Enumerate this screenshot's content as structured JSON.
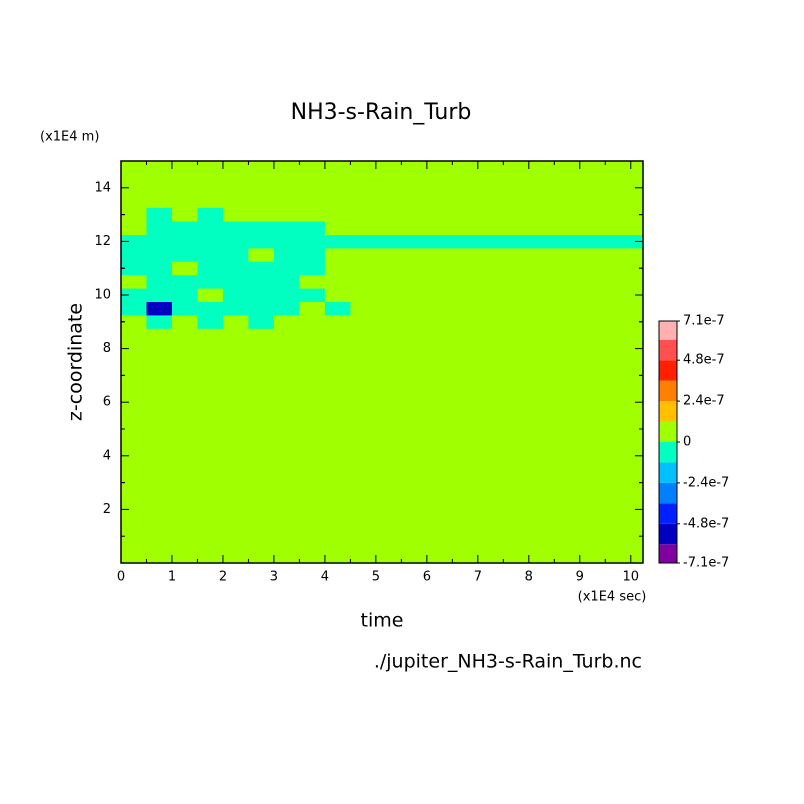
{
  "chart_data": {
    "type": "heatmap",
    "title": "NH3-s-Rain_Turb",
    "x_label": "time",
    "y_label": "z-coordinate",
    "x_unit": "(x1E4 sec)",
    "y_unit": "(x1E4 m)",
    "source": "./jupiter_NH3-s-Rain_Turb.nc",
    "xlim": [
      0,
      10.24
    ],
    "ylim": [
      0,
      15
    ],
    "xticks": [
      0,
      1,
      2,
      3,
      4,
      5,
      6,
      7,
      8,
      9,
      10
    ],
    "yticks": [
      2,
      4,
      6,
      8,
      10,
      12,
      14
    ],
    "x": [
      0.25,
      0.75,
      1.25,
      1.75,
      2.25,
      2.75,
      3.25,
      3.75,
      4.25,
      4.75,
      5.25,
      5.75,
      6.25,
      6.75,
      7.25,
      7.75,
      8.25,
      8.75,
      9.25,
      9.75,
      10.25
    ],
    "y": [
      9,
      9.5,
      10,
      10.5,
      11,
      11.5,
      12,
      12.5,
      13
    ],
    "values": [
      [
        0,
        -6e-08,
        0,
        -6e-08,
        0,
        -6e-08,
        0,
        0,
        0,
        0,
        0,
        0,
        0,
        0,
        0,
        0,
        0,
        0,
        0,
        0,
        0
      ],
      [
        -6e-08,
        -5e-07,
        -6e-08,
        -6e-08,
        -6e-08,
        -6e-08,
        -6e-08,
        0,
        -6e-08,
        0,
        0,
        0,
        0,
        0,
        0,
        0,
        0,
        0,
        0,
        0,
        0
      ],
      [
        -6e-08,
        -6e-08,
        -6e-08,
        0,
        -6e-08,
        -6e-08,
        -6e-08,
        -6e-08,
        0,
        0,
        0,
        0,
        0,
        0,
        0,
        0,
        0,
        0,
        0,
        0,
        0
      ],
      [
        0,
        -6e-08,
        -6e-08,
        -6e-08,
        -6e-08,
        -6e-08,
        -6e-08,
        0,
        0,
        0,
        0,
        0,
        0,
        0,
        0,
        0,
        0,
        0,
        0,
        0,
        0
      ],
      [
        -6e-08,
        -6e-08,
        0,
        -6e-08,
        -6e-08,
        -6e-08,
        -6e-08,
        -6e-08,
        0,
        0,
        0,
        0,
        0,
        0,
        0,
        0,
        0,
        0,
        0,
        0,
        0
      ],
      [
        -6e-08,
        -6e-08,
        -6e-08,
        -6e-08,
        -6e-08,
        0,
        -6e-08,
        -6e-08,
        0,
        0,
        0,
        0,
        0,
        0,
        0,
        0,
        0,
        0,
        0,
        0,
        0
      ],
      [
        -6e-08,
        -6e-08,
        -6e-08,
        -6e-08,
        -6e-08,
        -6e-08,
        -6e-08,
        -6e-08,
        -6e-08,
        -6e-08,
        -6e-08,
        -6e-08,
        -6e-08,
        -6e-08,
        -6e-08,
        -6e-08,
        -6e-08,
        -6e-08,
        -6e-08,
        -6e-08,
        -6e-08
      ],
      [
        0,
        -6e-08,
        -6e-08,
        -6e-08,
        -6e-08,
        -6e-08,
        -6e-08,
        -6e-08,
        0,
        0,
        0,
        0,
        0,
        0,
        0,
        0,
        0,
        0,
        0,
        0,
        0
      ],
      [
        0,
        -6e-08,
        0,
        -6e-08,
        0,
        0,
        0,
        0,
        0,
        0,
        0,
        0,
        0,
        0,
        0,
        0,
        0,
        0,
        0,
        0,
        0
      ]
    ],
    "levels": [
      -7.1e-07,
      -6e-07,
      -4.8e-07,
      -3.6e-07,
      -2.4e-07,
      -1.2e-07,
      0,
      1.2e-07,
      2.4e-07,
      3.6e-07,
      4.8e-07,
      6e-07,
      7.1e-07
    ],
    "colors": [
      "#8000a0",
      "#0000c0",
      "#0020ff",
      "#0080ff",
      "#00c0ff",
      "#00ffc0",
      "#a0ff00",
      "#ffc000",
      "#ff8000",
      "#ff2000",
      "#ff5050",
      "#ffb0b0"
    ],
    "colorbar_ticks": [
      7.1e-07,
      4.8e-07,
      2.4e-07,
      0,
      -2.4e-07,
      -4.8e-07,
      -7.1e-07
    ]
  }
}
